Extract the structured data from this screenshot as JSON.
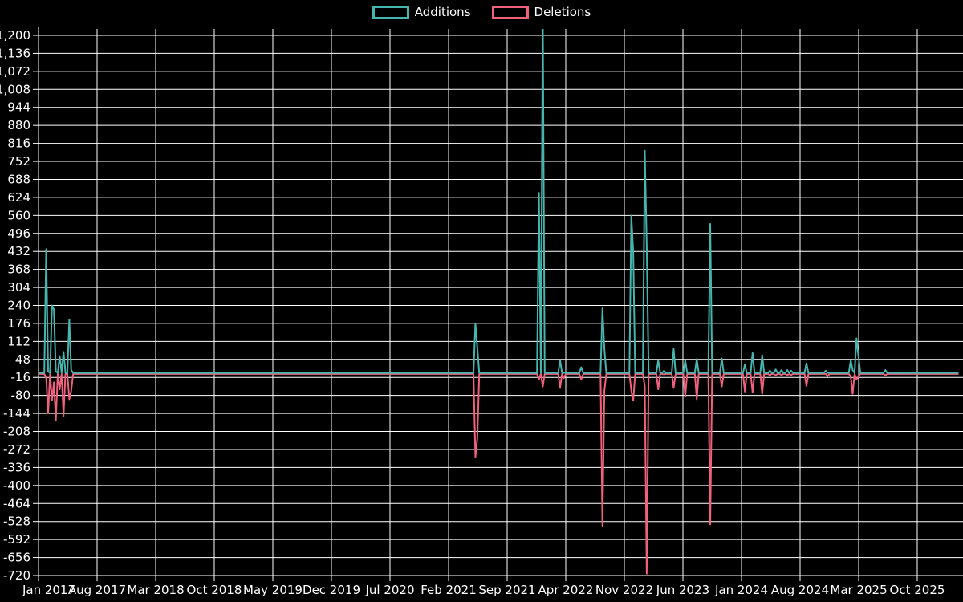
{
  "colors": {
    "background": "#000000",
    "grid": "#ffffff",
    "axis": "#ffffff",
    "text": "#ffffff",
    "additions": "#45b5ae",
    "deletions": "#f0617e"
  },
  "legend": {
    "items": [
      {
        "label": "Additions",
        "color": "#45b5ae"
      },
      {
        "label": "Deletions",
        "color": "#f0617e"
      }
    ]
  },
  "chart_data": {
    "type": "line",
    "title": "",
    "xlabel": "",
    "ylabel": "",
    "grid": true,
    "legend_position": "top-center",
    "series_names": [
      "Additions",
      "Deletions"
    ],
    "y_axis": {
      "min": -720,
      "max": 1200,
      "step": 64,
      "tick_values": [
        1200,
        1136,
        1072,
        1008,
        944,
        880,
        816,
        752,
        688,
        624,
        560,
        496,
        432,
        368,
        304,
        240,
        176,
        112,
        48,
        -16,
        -80,
        -144,
        -208,
        -272,
        -336,
        -400,
        -464,
        -528,
        -592,
        -656,
        -720
      ],
      "tick_labels": [
        "1,200",
        "1,136",
        "1,072",
        "1,008",
        "944",
        "880",
        "816",
        "752",
        "688",
        "624",
        "560",
        "496",
        "432",
        "368",
        "304",
        "240",
        "176",
        "112",
        "48",
        "-16",
        "-80",
        "-144",
        "-208",
        "-272",
        "-336",
        "-400",
        "-464",
        "-528",
        "-592",
        "-656",
        "-720"
      ]
    },
    "x_axis": {
      "tick_labels": [
        "Jan 2017",
        "Aug 2017",
        "Mar 2018",
        "Oct 2018",
        "May 2019",
        "Dec 2019",
        "Jul 2020",
        "Feb 2021",
        "Sep 2021",
        "Apr 2022",
        "Nov 2022",
        "Jun 2023",
        "Jan 2024",
        "Aug 2024",
        "Mar 2025",
        "Oct 2025"
      ],
      "tick_month_offsets": [
        0,
        7,
        14,
        21,
        28,
        35,
        42,
        49,
        56,
        63,
        70,
        77,
        84,
        91,
        98,
        105
      ]
    },
    "weeks_total": 479,
    "note_clipped_peak": "week 262 additions peak exceeds top of plot (clipped above 1,200)",
    "points_format": [
      "week_index_from_2017-01",
      "additions",
      "deletions"
    ],
    "points": [
      [
        4,
        440,
        -15
      ],
      [
        5,
        5,
        -140
      ],
      [
        7,
        240,
        -95
      ],
      [
        8,
        225,
        -30
      ],
      [
        9,
        5,
        -165
      ],
      [
        11,
        60,
        -55
      ],
      [
        13,
        75,
        -150
      ],
      [
        16,
        190,
        -90
      ],
      [
        17,
        10,
        -60
      ],
      [
        227,
        176,
        -295
      ],
      [
        228,
        90,
        -230
      ],
      [
        260,
        640,
        -20
      ],
      [
        262,
        1280,
        -45
      ],
      [
        271,
        45,
        -50
      ],
      [
        273,
        0,
        -15
      ],
      [
        282,
        20,
        -20
      ],
      [
        293,
        230,
        -540
      ],
      [
        294,
        85,
        -60
      ],
      [
        308,
        560,
        -60
      ],
      [
        309,
        430,
        -95
      ],
      [
        315,
        790,
        -45
      ],
      [
        316,
        450,
        -710
      ],
      [
        322,
        45,
        -55
      ],
      [
        325,
        8,
        -2
      ],
      [
        330,
        85,
        -50
      ],
      [
        336,
        45,
        -80
      ],
      [
        342,
        50,
        -90
      ],
      [
        349,
        530,
        -535
      ],
      [
        355,
        51,
        -45
      ],
      [
        367,
        30,
        -63
      ],
      [
        371,
        71,
        -66
      ],
      [
        376,
        63,
        -71
      ],
      [
        380,
        8,
        -5
      ],
      [
        383,
        12,
        -5
      ],
      [
        386,
        10,
        -4
      ],
      [
        389,
        10,
        -4
      ],
      [
        391,
        8,
        -4
      ],
      [
        399,
        34,
        -43
      ],
      [
        409,
        8,
        0
      ],
      [
        410,
        0,
        -8
      ],
      [
        422,
        45,
        -10
      ],
      [
        423,
        10,
        -71
      ],
      [
        425,
        123,
        -20
      ],
      [
        426,
        60,
        -10
      ],
      [
        440,
        10,
        -5
      ]
    ]
  }
}
